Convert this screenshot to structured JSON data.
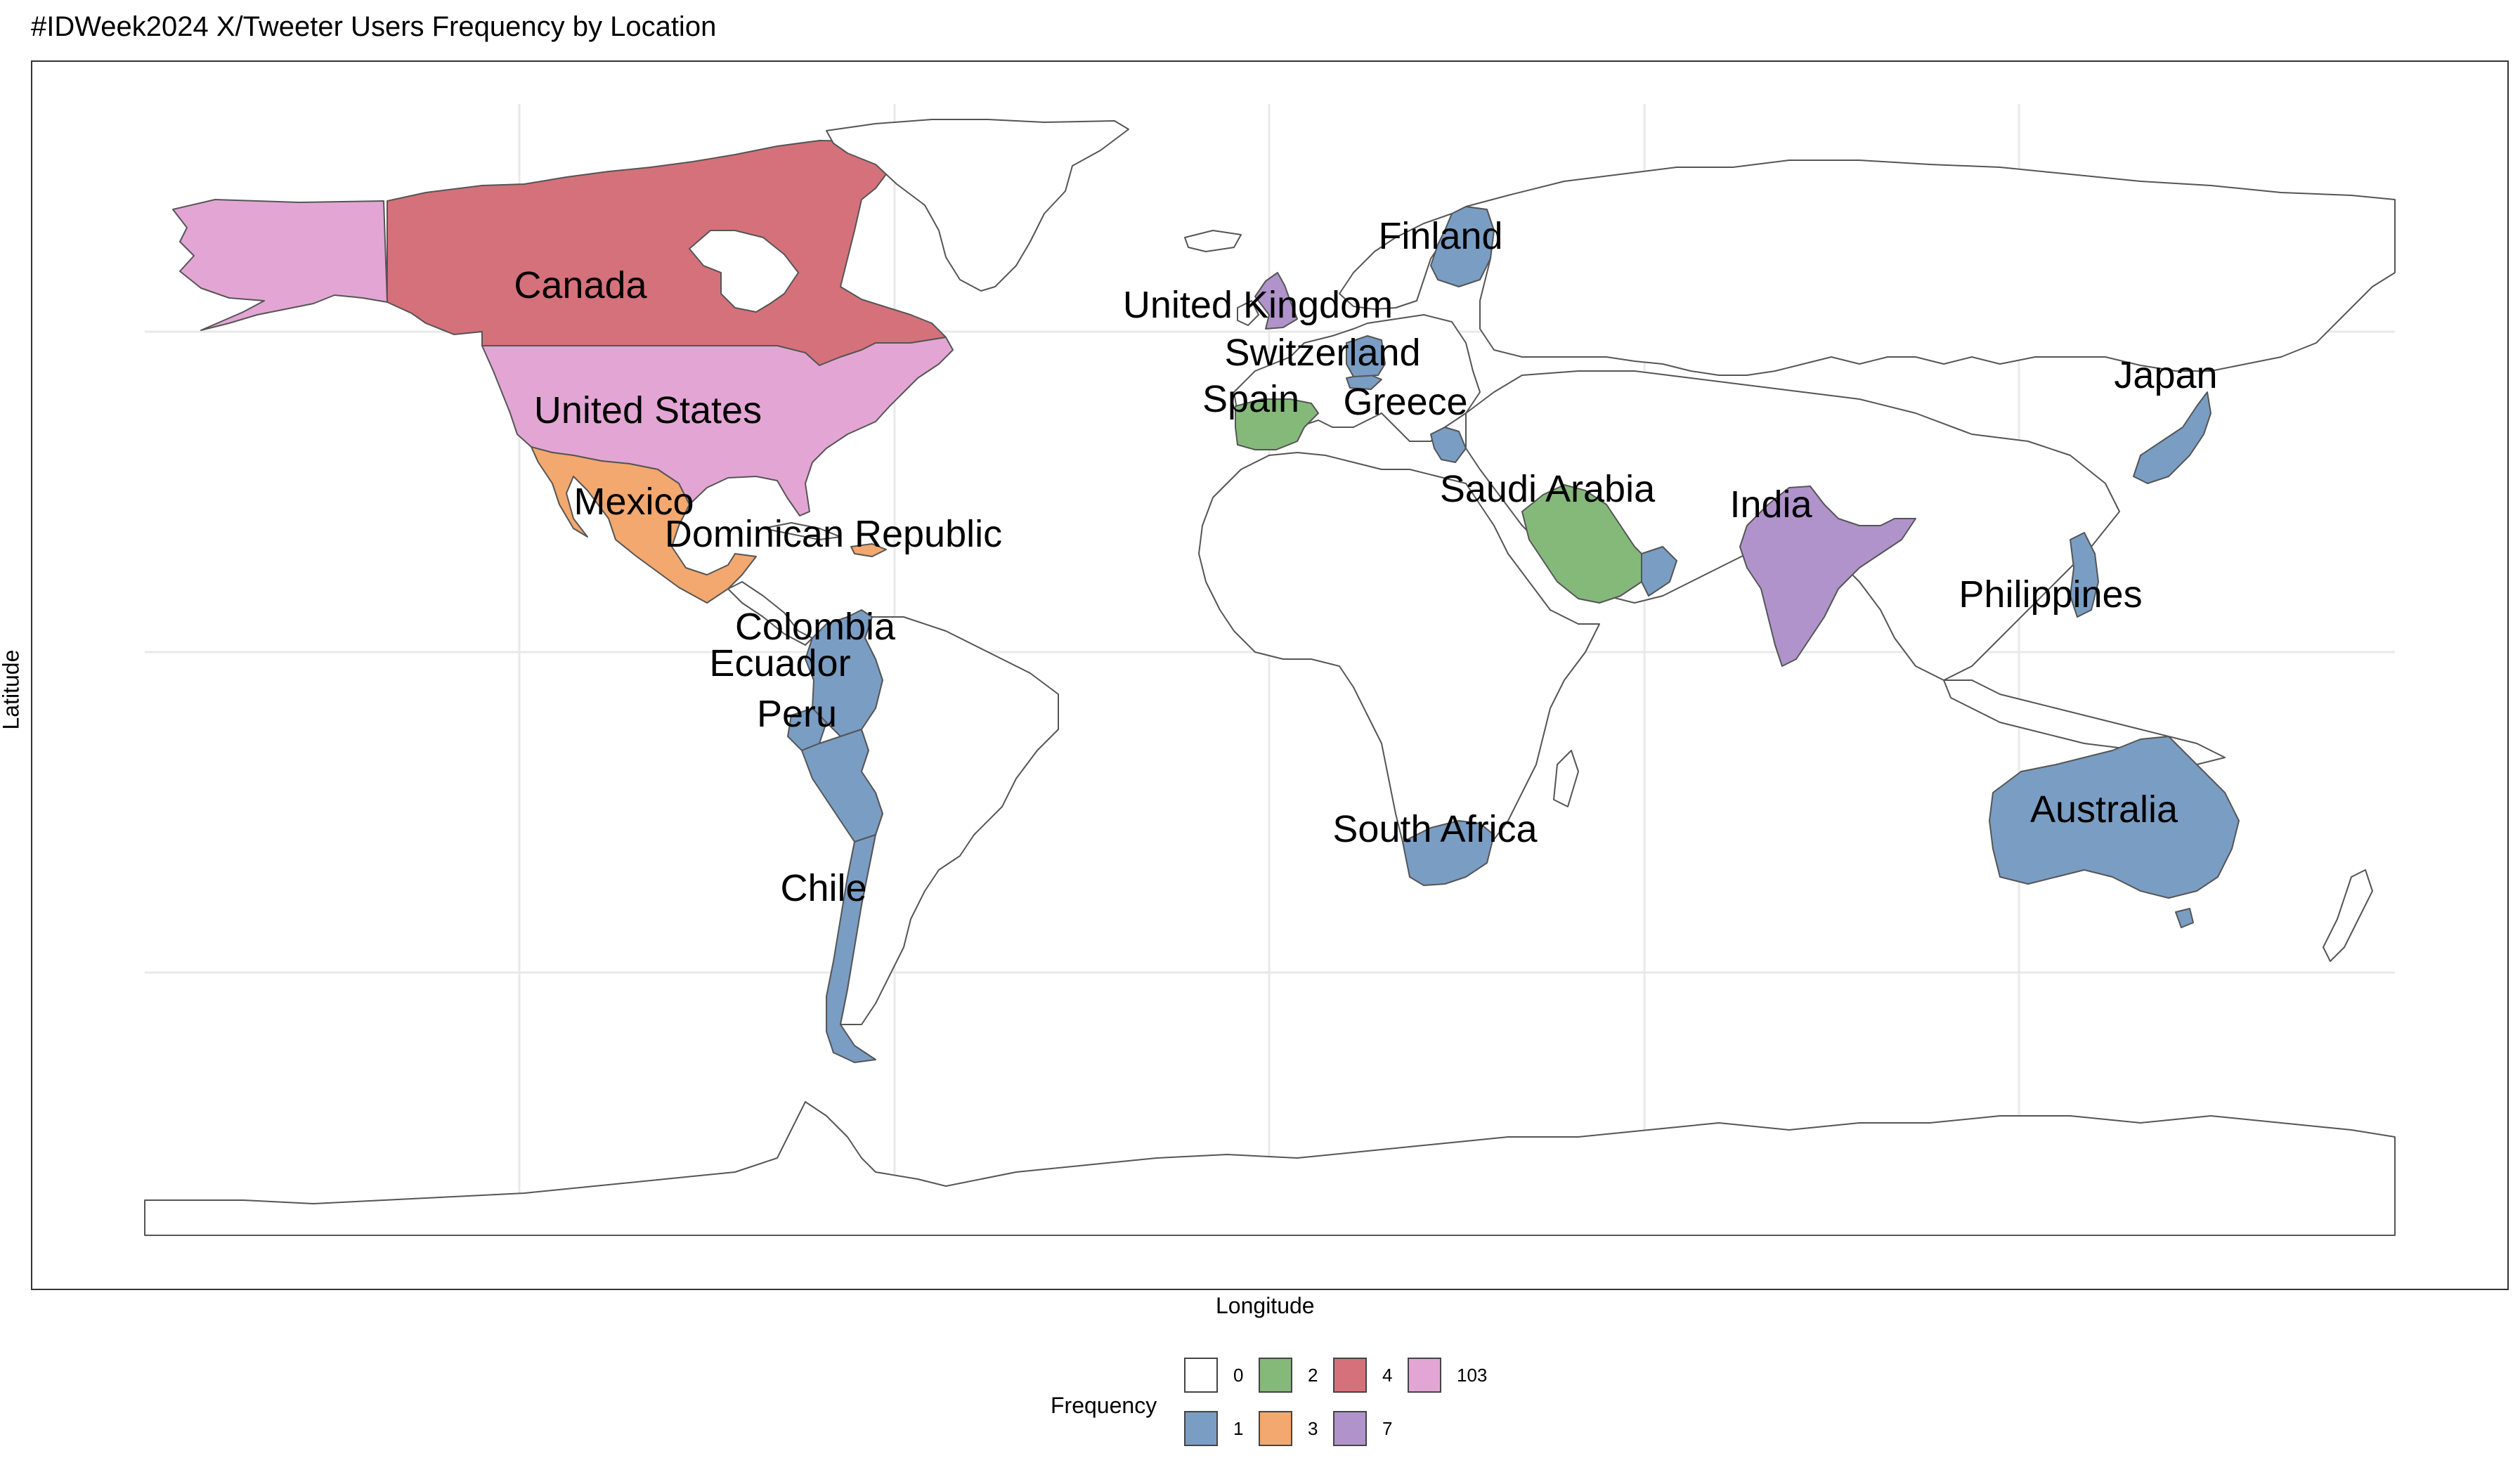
{
  "chart_data": {
    "type": "choropleth",
    "title": "#IDWeek2024 X/Tweeter Users Frequency by Location",
    "xlabel": "Longitude",
    "ylabel": "Latitude",
    "legend": {
      "title": "Frequency",
      "placement": "bottom",
      "entries": [
        {
          "label": "0",
          "color": "#ffffff"
        },
        {
          "label": "1",
          "color": "#7a9dc4"
        },
        {
          "label": "2",
          "color": "#84b97a"
        },
        {
          "label": "3",
          "color": "#f2a86e"
        },
        {
          "label": "4",
          "color": "#d5717a"
        },
        {
          "label": "7",
          "color": "#b093cb"
        },
        {
          "label": "103",
          "color": "#e3a6d4"
        }
      ]
    },
    "grid": true,
    "countries": [
      {
        "name": "Canada",
        "frequency": 4
      },
      {
        "name": "United States",
        "frequency": 103
      },
      {
        "name": "Mexico",
        "frequency": 3
      },
      {
        "name": "Dominican Republic",
        "frequency": 3
      },
      {
        "name": "Colombia",
        "frequency": 1
      },
      {
        "name": "Ecuador",
        "frequency": 1
      },
      {
        "name": "Peru",
        "frequency": 1
      },
      {
        "name": "Chile",
        "frequency": 1
      },
      {
        "name": "United Kingdom",
        "frequency": 7
      },
      {
        "name": "Finland",
        "frequency": 1
      },
      {
        "name": "Switzerland",
        "frequency": 1
      },
      {
        "name": "Spain",
        "frequency": 2
      },
      {
        "name": "Greece",
        "frequency": 1
      },
      {
        "name": "Saudi Arabia",
        "frequency": 2
      },
      {
        "name": "India",
        "frequency": 7
      },
      {
        "name": "Japan",
        "frequency": 1
      },
      {
        "name": "Philippines",
        "frequency": 1
      },
      {
        "name": "Australia",
        "frequency": 1
      },
      {
        "name": "South Africa",
        "frequency": 1
      }
    ]
  }
}
